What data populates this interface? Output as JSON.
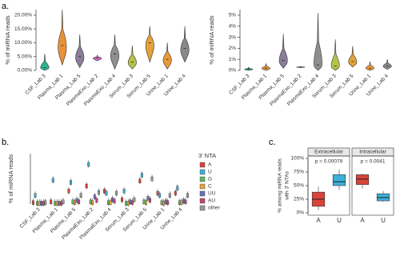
{
  "chart_data": [
    {
      "type": "violin",
      "panel": "a.",
      "y_label": "% of miRNA reads",
      "categories": [
        "CSF_Lab 3",
        "Plasma_Lab 1",
        "Plasma_Lab 5",
        "PlasmaExo_Lab 2",
        "PlasmaExo_Lab 4",
        "Serum_Lab 3",
        "Serum_Lab 5",
        "Urine_Lab 1",
        "Urine_Lab 4"
      ],
      "min": [
        0,
        2,
        1,
        3.5,
        0.5,
        0.5,
        3,
        0.5,
        3
      ],
      "median": [
        1,
        9,
        5,
        4.5,
        6,
        3,
        10,
        4,
        8
      ],
      "max": [
        6,
        22,
        13,
        5.5,
        13,
        9,
        16,
        10,
        16
      ],
      "colors": [
        "#2bb58f",
        "#e8923a",
        "#8a7d9a",
        "#d66fc8",
        "#8f8f8f",
        "#b5c24a",
        "#e3a23a",
        "#e89a3a",
        "#8a8a8a"
      ],
      "ylim": [
        0,
        22
      ],
      "yticks": [
        {
          "value": 0,
          "label": "0.00%"
        },
        {
          "value": 5,
          "label": "5.00%"
        },
        {
          "value": 10,
          "label": "10.00%"
        },
        {
          "value": 15,
          "label": "15.00%"
        },
        {
          "value": 20,
          "label": "20.00%"
        }
      ]
    },
    {
      "type": "violin",
      "y_label": "% of miRNA reads",
      "categories": [
        "CSF_Lab 3",
        "Plasma_Lab 1",
        "Plasma_Lab 5",
        "PlasmaExo_Lab 2",
        "PlasmaExo_Lab 4",
        "Serum_Lab 3",
        "Serum_Lab 5",
        "Urine_Lab 1",
        "Urine_Lab 4"
      ],
      "min": [
        0,
        0,
        0.2,
        0.25,
        0,
        0,
        0.3,
        0,
        0.1
      ],
      "median": [
        0.1,
        0.2,
        0.9,
        0.3,
        0.5,
        0.4,
        0.8,
        0.2,
        0.4
      ],
      "max": [
        0.3,
        0.6,
        3.3,
        0.35,
        5.2,
        2.8,
        2.2,
        0.8,
        1
      ],
      "colors": [
        "#2bb58f",
        "#e8923a",
        "#8a7d9a",
        "#d66fc8",
        "#8f8f8f",
        "#b5c24a",
        "#e3a23a",
        "#e89a3a",
        "#8a8a8a"
      ],
      "ylim": [
        0,
        5.5
      ],
      "yticks": [
        {
          "value": 0,
          "label": "0%"
        },
        {
          "value": 1,
          "label": "1%"
        },
        {
          "value": 2,
          "label": "2%"
        },
        {
          "value": 3,
          "label": "3%"
        },
        {
          "value": 4,
          "label": "4%"
        },
        {
          "value": 5,
          "label": "5%"
        }
      ]
    },
    {
      "type": "grouped_box",
      "panel": "b.",
      "y_label": "% of miRNA reads",
      "legend_title": "3' NTA",
      "categories": [
        "CSF_Lab 3",
        "Plasma_Lab 1",
        "Plasma_Lab 5",
        "PlasmaExo_Lab 2",
        "PlasmaExo_Lab 4",
        "Serum_Lab 3",
        "Serum_Lab 5",
        "Urine_Lab 1",
        "Urine_Lab 4"
      ],
      "ylim": [
        0,
        7
      ],
      "series": [
        {
          "name": "A",
          "color": "#d9443a",
          "values": [
            0.2,
            0.3,
            1.8,
            2.5,
            1.8,
            0.6,
            3.2,
            1.5,
            1.5
          ]
        },
        {
          "name": "U",
          "color": "#3db0d8",
          "values": [
            1.2,
            3.3,
            3.0,
            5.5,
            1.5,
            1.8,
            4.0,
            1.2,
            2.2
          ]
        },
        {
          "name": "G",
          "color": "#5cb85c",
          "values": [
            0.1,
            0.1,
            0.3,
            0.3,
            0.2,
            0.1,
            0.3,
            0.2,
            0.2
          ]
        },
        {
          "name": "C",
          "color": "#e8a33d",
          "values": [
            0.1,
            0.1,
            0.2,
            0.2,
            0.2,
            0.1,
            0.2,
            0.1,
            0.2
          ]
        },
        {
          "name": "UU",
          "color": "#6b6fb5",
          "values": [
            0.1,
            0.1,
            0.5,
            1.0,
            0.6,
            0.3,
            0.8,
            0.3,
            0.4
          ]
        },
        {
          "name": "AU",
          "color": "#c2457a",
          "values": [
            0.1,
            0.1,
            0.3,
            0.5,
            0.4,
            0.2,
            0.5,
            0.2,
            0.3
          ]
        },
        {
          "name": "other",
          "color": "#999999",
          "values": [
            0.2,
            0.3,
            1.2,
            1.6,
            1.5,
            0.6,
            3.5,
            1.2,
            1.2
          ]
        }
      ]
    },
    {
      "type": "faceted_box",
      "panel": "c.",
      "y_label": [
        "% among miRNA reads",
        "with 3' NTAs"
      ],
      "ylim": [
        0,
        100
      ],
      "yticks": [
        {
          "value": 0,
          "label": "0%"
        },
        {
          "value": 25,
          "label": "25%"
        },
        {
          "value": 50,
          "label": "50%"
        },
        {
          "value": 75,
          "label": "75%"
        },
        {
          "value": 100,
          "label": "100%"
        }
      ],
      "colors": [
        "#d9443a",
        "#3db0d8"
      ],
      "facets": [
        {
          "title": "Extracellular",
          "p_label": "p = 0.00078",
          "categories": [
            "A",
            "U"
          ],
          "whisker_low": [
            5,
            42
          ],
          "q1": [
            12,
            50
          ],
          "median": [
            25,
            57
          ],
          "q3": [
            38,
            70
          ],
          "whisker_high": [
            48,
            80
          ]
        },
        {
          "title": "Intracellular",
          "p_label": "p = 0.0041",
          "categories": [
            "A",
            "U"
          ],
          "whisker_low": [
            45,
            20
          ],
          "q1": [
            52,
            22
          ],
          "median": [
            62,
            28
          ],
          "q3": [
            70,
            35
          ],
          "whisker_high": [
            72,
            40
          ]
        }
      ]
    }
  ]
}
